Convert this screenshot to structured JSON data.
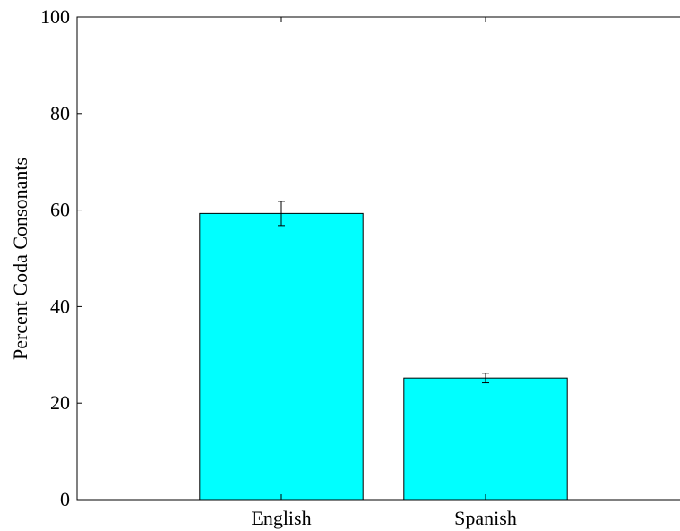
{
  "chart_data": {
    "type": "bar",
    "categories": [
      "English",
      "Spanish"
    ],
    "values": [
      59.3,
      25.2
    ],
    "errors": [
      2.5,
      1.0
    ],
    "ylabel": "Percent Coda Consonants",
    "xlabel": "",
    "ylim": [
      0,
      100
    ],
    "yticks": [
      0,
      20,
      40,
      60,
      80,
      100
    ],
    "ytick_labels": [
      "0",
      "20",
      "40",
      "60",
      "80",
      "100"
    ],
    "bar_color": "#00ffff",
    "grid": false
  }
}
